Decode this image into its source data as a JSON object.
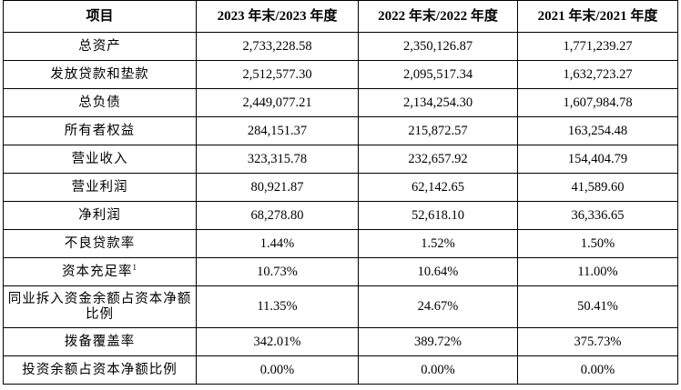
{
  "table": {
    "headers": [
      "项目",
      "2023 年末/2023 年度",
      "2022 年末/2022 年度",
      "2021 年末/2021 年度"
    ],
    "rows": [
      {
        "label": "总资产",
        "sup": "",
        "values": [
          "2,733,228.58",
          "2,350,126.87",
          "1,771,239.27"
        ]
      },
      {
        "label": "发放贷款和垫款",
        "sup": "",
        "values": [
          "2,512,577.30",
          "2,095,517.34",
          "1,632,723.27"
        ]
      },
      {
        "label": "总负债",
        "sup": "",
        "values": [
          "2,449,077.21",
          "2,134,254.30",
          "1,607,984.78"
        ]
      },
      {
        "label": "所有者权益",
        "sup": "",
        "values": [
          "284,151.37",
          "215,872.57",
          "163,254.48"
        ]
      },
      {
        "label": "营业收入",
        "sup": "",
        "values": [
          "323,315.78",
          "232,657.92",
          "154,404.79"
        ]
      },
      {
        "label": "营业利润",
        "sup": "",
        "values": [
          "80,921.87",
          "62,142.65",
          "41,589.60"
        ]
      },
      {
        "label": "净利润",
        "sup": "",
        "values": [
          "68,278.80",
          "52,618.10",
          "36,336.65"
        ]
      },
      {
        "label": "不良贷款率",
        "sup": "",
        "values": [
          "1.44%",
          "1.52%",
          "1.50%"
        ]
      },
      {
        "label": "资本充足率",
        "sup": "1",
        "values": [
          "10.73%",
          "10.64%",
          "11.00%"
        ]
      },
      {
        "label": "同业拆入资金余额占资本净额比例",
        "sup": "",
        "values": [
          "11.35%",
          "24.67%",
          "50.41%"
        ]
      },
      {
        "label": "拨备覆盖率",
        "sup": "",
        "values": [
          "342.01%",
          "389.72%",
          "375.73%"
        ]
      },
      {
        "label": "投资余额占资本净额比例",
        "sup": "",
        "values": [
          "0.00%",
          "0.00%",
          "0.00%"
        ]
      }
    ]
  }
}
